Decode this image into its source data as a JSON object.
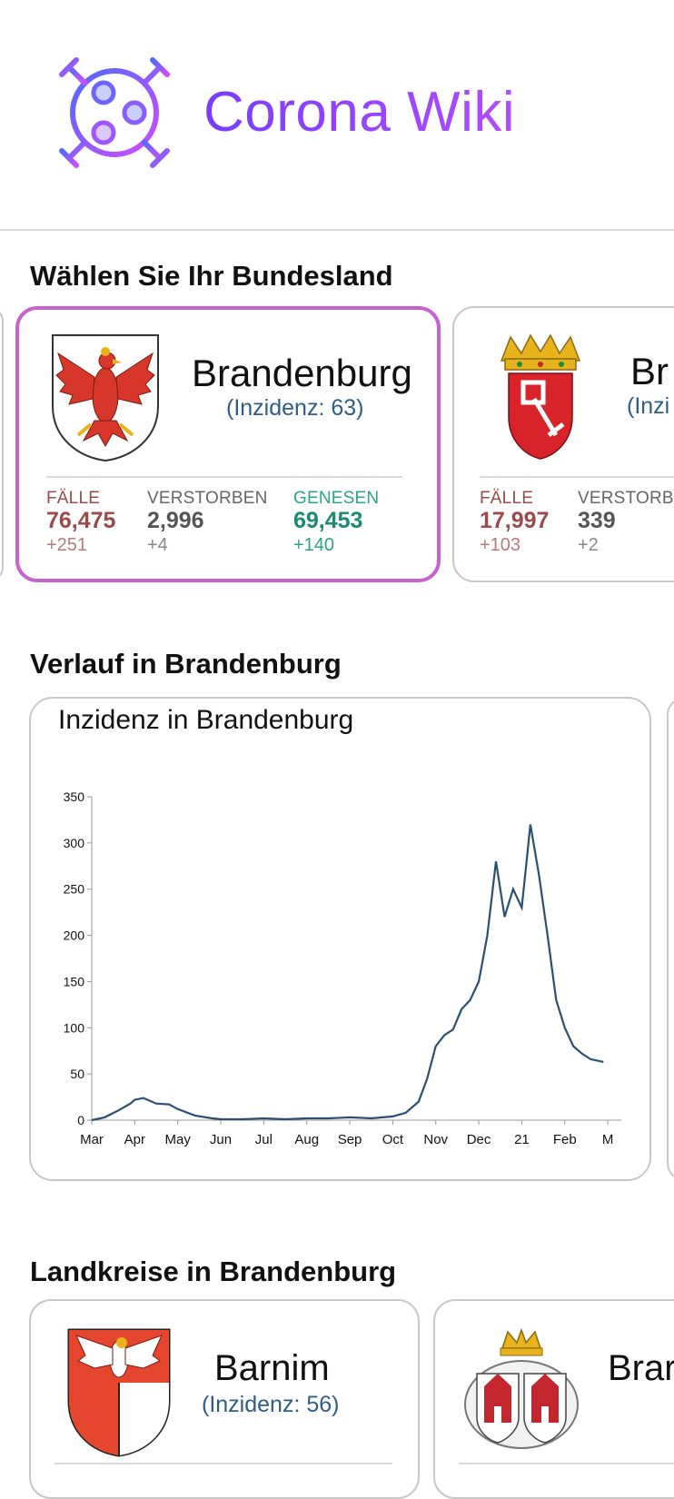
{
  "app": {
    "title": "Corona Wiki"
  },
  "sections": {
    "bundesland": "Wählen Sie Ihr Bundesland",
    "verlauf": "Verlauf in Brandenburg",
    "landkreise": "Landkreise in Brandenburg"
  },
  "states": [
    {
      "name": "Brandenburg",
      "inzidenz": "(Inzidenz: 63)",
      "labels": {
        "faelle": "FÄLLE",
        "verstorben": "VERSTORBEN",
        "genesen": "GENESEN"
      },
      "faelle": "76,475",
      "faelle_delta": "+251",
      "verstorben": "2,996",
      "verstorben_delta": "+4",
      "genesen": "69,453",
      "genesen_delta": "+140"
    },
    {
      "name": "Br",
      "inzidenz": "(Inzi",
      "labels": {
        "faelle": "FÄLLE",
        "verstorben": "VERSTORB"
      },
      "faelle": "17,997",
      "faelle_delta": "+103",
      "verstorben": "339",
      "verstorben_delta": "+2"
    }
  ],
  "landkreise": [
    {
      "name": "Barnim",
      "inzidenz": "(Inzidenz: 56)"
    },
    {
      "name": "Brar"
    }
  ],
  "colors": {
    "accent": "#c962d1",
    "line": "#2b4f72",
    "faelle": "#9a4a4a",
    "genesen": "#1a8a72"
  },
  "chart_data": {
    "type": "line",
    "title": "Inzidenz in Brandenburg",
    "xlabel": "",
    "ylabel": "",
    "ylim": [
      0,
      350
    ],
    "yticks": [
      0,
      50,
      100,
      150,
      200,
      250,
      300,
      350
    ],
    "xticks": [
      "Mar",
      "Apr",
      "May",
      "Jun",
      "Jul",
      "Aug",
      "Sep",
      "Oct",
      "Nov",
      "Dec",
      "21",
      "Feb",
      "M"
    ],
    "grid": false,
    "series": [
      {
        "x": [
          0,
          0.3,
          0.6,
          0.9,
          1.0,
          1.2,
          1.5,
          1.8,
          2.0,
          2.4,
          2.8,
          3.0,
          3.5,
          4.0,
          4.5,
          5.0,
          5.5,
          6.0,
          6.5,
          7.0,
          7.3,
          7.6,
          7.8,
          8.0,
          8.2,
          8.4,
          8.6,
          8.8,
          9.0,
          9.2,
          9.4,
          9.6,
          9.8,
          10.0,
          10.2,
          10.4,
          10.6,
          10.8,
          11.0,
          11.2,
          11.4,
          11.6,
          11.8,
          11.9
        ],
        "y": [
          0,
          3,
          10,
          18,
          22,
          24,
          18,
          17,
          12,
          5,
          2,
          1,
          1,
          2,
          1,
          2,
          2,
          3,
          2,
          4,
          8,
          20,
          45,
          80,
          92,
          98,
          120,
          130,
          150,
          200,
          280,
          220,
          250,
          230,
          320,
          265,
          200,
          130,
          100,
          80,
          72,
          66,
          64,
          63
        ]
      }
    ]
  }
}
